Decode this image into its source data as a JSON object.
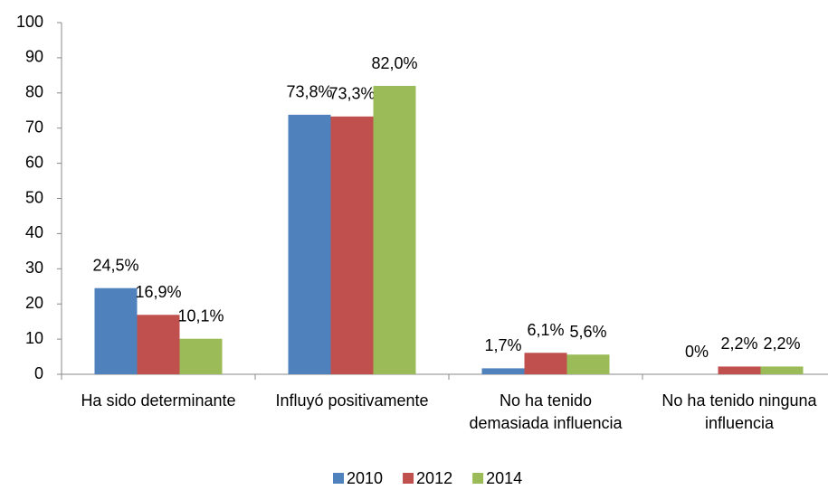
{
  "chart_data": {
    "type": "bar",
    "categories": [
      "Ha sido determinante",
      "Influyó positivamente",
      "No ha tenido\ndemasiada influencia",
      "No ha tenido ninguna\ninfluencia"
    ],
    "series": [
      {
        "name": "2010",
        "color": "#4f81bd",
        "values": [
          24.5,
          73.8,
          1.7,
          0
        ],
        "value_labels": [
          "24,5%",
          "73,8%",
          "1,7%",
          "0%"
        ]
      },
      {
        "name": "2012",
        "color": "#c0504d",
        "values": [
          16.9,
          73.3,
          6.1,
          2.2
        ],
        "value_labels": [
          "16,9%",
          "73,3%",
          "6,1%",
          "2,2%"
        ]
      },
      {
        "name": "2014",
        "color": "#9bbb59",
        "values": [
          10.1,
          82.0,
          5.6,
          2.2
        ],
        "value_labels": [
          "10,1%",
          "82,0%",
          "5,6%",
          "2,2%"
        ]
      }
    ],
    "ylim": [
      0,
      100
    ],
    "yticks": [
      0,
      10,
      20,
      30,
      40,
      50,
      60,
      70,
      80,
      90,
      100
    ],
    "grid": false,
    "legend": "bottom"
  }
}
